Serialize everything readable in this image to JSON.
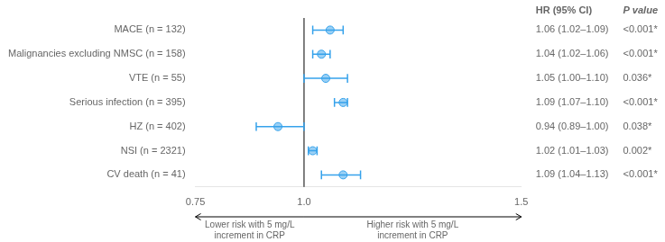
{
  "chart_data": {
    "type": "forest",
    "categories": [
      "MACE (n = 132)",
      "Malignancies excluding NMSC (n = 158)",
      "VTE (n = 55)",
      "Serious infection (n = 395)",
      "HZ (n = 402)",
      "NSI (n = 2321)",
      "CV death (n = 41)"
    ],
    "values": [
      1.06,
      1.04,
      1.05,
      1.09,
      0.94,
      1.02,
      1.09
    ],
    "ci_low": [
      1.02,
      1.02,
      1.0,
      1.07,
      0.89,
      1.01,
      1.04
    ],
    "ci_high": [
      1.09,
      1.06,
      1.1,
      1.1,
      1.0,
      1.03,
      1.13
    ],
    "reference_line": 1.0,
    "xlim": [
      0.75,
      1.5
    ],
    "xticks": [
      0.75,
      {
        "value": 1.0,
        "label": "1.0"
      },
      1.5
    ],
    "grid": false,
    "columns": [
      {
        "header": "HR (95% CI)",
        "values": [
          "1.06 (1.02–1.09)",
          "1.04 (1.02–1.06)",
          "1.05 (1.00–1.10)",
          "1.09 (1.07–1.10)",
          "0.94 (0.89–1.00)",
          "1.02 (1.01–1.03)",
          "1.09 (1.04–1.13)"
        ]
      },
      {
        "header": "P value",
        "values": [
          "<0.001*",
          "<0.001*",
          "0.036*",
          "<0.001*",
          "0.038*",
          "0.002*",
          "<0.001*"
        ]
      }
    ],
    "annotations": [
      {
        "side": "left",
        "text": [
          "Lower risk with 5 mg/L",
          "increment in CRP"
        ]
      },
      {
        "side": "right",
        "text": [
          "Higher risk with 5 mg/L",
          "increment in CRP"
        ]
      }
    ]
  }
}
